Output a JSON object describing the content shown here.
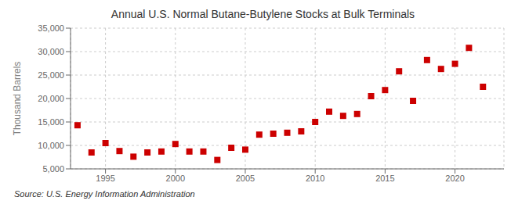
{
  "chart_data": {
    "type": "scatter",
    "title": "Annual U.S. Normal Butane-Butylene Stocks at Bulk Terminals",
    "y_label": "Thousand Barrels",
    "annotation": "Source: U.S. Energy Information Administration",
    "x": [
      1993,
      1994,
      1995,
      1996,
      1997,
      1998,
      1999,
      2000,
      2001,
      2002,
      2003,
      2004,
      2005,
      2006,
      2007,
      2008,
      2009,
      2010,
      2011,
      2012,
      2013,
      2014,
      2015,
      2016,
      2017,
      2018,
      2019,
      2020,
      2021,
      2022
    ],
    "values": [
      14300,
      8500,
      10500,
      8800,
      7600,
      8500,
      8700,
      10300,
      8700,
      8700,
      6900,
      9500,
      9100,
      12300,
      12500,
      12700,
      13000,
      15000,
      17200,
      16300,
      16700,
      20500,
      21800,
      25800,
      19500,
      28200,
      26300,
      27400,
      30800,
      22500
    ],
    "color": "#cc0000",
    "marker": "square",
    "xlim": [
      1992.5,
      2023.5
    ],
    "xticks": [
      1995,
      2000,
      2005,
      2010,
      2015,
      2020
    ],
    "ylim": [
      5000,
      35000
    ],
    "yticks": [
      {
        "value": 5000,
        "label": "5,000"
      },
      {
        "value": 10000,
        "label": "10,000"
      },
      {
        "value": 15000,
        "label": "15,000"
      },
      {
        "value": 20000,
        "label": "20,000"
      },
      {
        "value": 25000,
        "label": "25,000"
      },
      {
        "value": 30000,
        "label": "30,000"
      },
      {
        "value": 35000,
        "label": "35,000"
      }
    ],
    "grid": true
  }
}
